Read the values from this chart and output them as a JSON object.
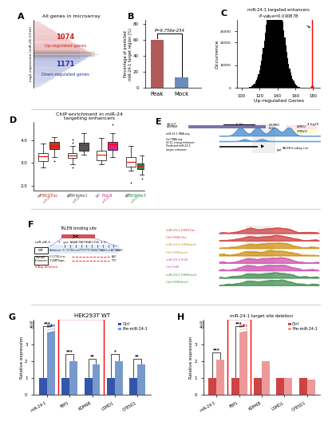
{
  "panel_A": {
    "title": "All genes in microarray",
    "up_count": "1074",
    "up_label": "Up-regulated genes",
    "down_count": "1171",
    "down_label": "Down-regulated genes",
    "ylabel": "Log2 expression (miR-24-1/Ctrl)"
  },
  "panel_B": {
    "categories": [
      "Peak",
      "Mock"
    ],
    "values": [
      60.42,
      13.24
    ],
    "bar_colors": [
      "#b05a5a",
      "#6b8cba"
    ],
    "ylabel": "Percentage of predicted\nmiR-24-1 target region (%)",
    "pvalue": "P=9.756e-254",
    "yticks": [
      0,
      20,
      40,
      60,
      80
    ]
  },
  "panel_C": {
    "xlabel": "Up-regulated Genes",
    "ylabel": "Occurrence",
    "mean": 137,
    "std": 9,
    "red_line_x": 179,
    "xticks": [
      100,
      120,
      140,
      160,
      180
    ],
    "ytick_labels": [
      "0",
      "10000",
      "20000",
      "25000"
    ],
    "ytick_vals": [
      0,
      10000,
      20000,
      25000
    ]
  },
  "panel_D": {
    "title": "ChIP enrichment in miR-24\ntargeting enhancers",
    "groups": [
      "H3K27ac",
      "H3K4me1",
      "Pol II",
      "H3K9me3"
    ],
    "group_colors": [
      "#c0392b",
      "#555555",
      "#e91e8c",
      "#2e8b57"
    ],
    "yticks": [
      2.0,
      3.0,
      4.0
    ]
  },
  "panel_G": {
    "title": "HEK293T WT",
    "categories": [
      "miR-24-1",
      "FBP1",
      "KDM6B",
      "LSMD1",
      "CYB5D1"
    ],
    "ctrl_values": [
      1.0,
      1.0,
      1.0,
      1.0,
      1.0
    ],
    "mir_values": [
      33,
      2.0,
      1.8,
      2.0,
      1.8
    ],
    "ctrl_color": "#3355aa",
    "mir_color": "#7799cc",
    "ylabel": "Relative expression",
    "significance": [
      "***",
      "***",
      "**",
      "*",
      "**"
    ]
  },
  "panel_H": {
    "title": "miR-24-1 target site deletion",
    "categories": [
      "miR-24-1",
      "FBP1",
      "KDM6B",
      "LSMD1",
      "CYB5D1"
    ],
    "ctrl_values": [
      1.0,
      1.0,
      1.0,
      1.0,
      1.0
    ],
    "mir_values": [
      2.1,
      37,
      2.0,
      1.0,
      0.9
    ],
    "ctrl_color": "#cc4444",
    "mir_color": "#ee9999",
    "ylabel": "Relative expression",
    "significance": [
      "***",
      "***",
      null,
      null,
      null
    ]
  }
}
